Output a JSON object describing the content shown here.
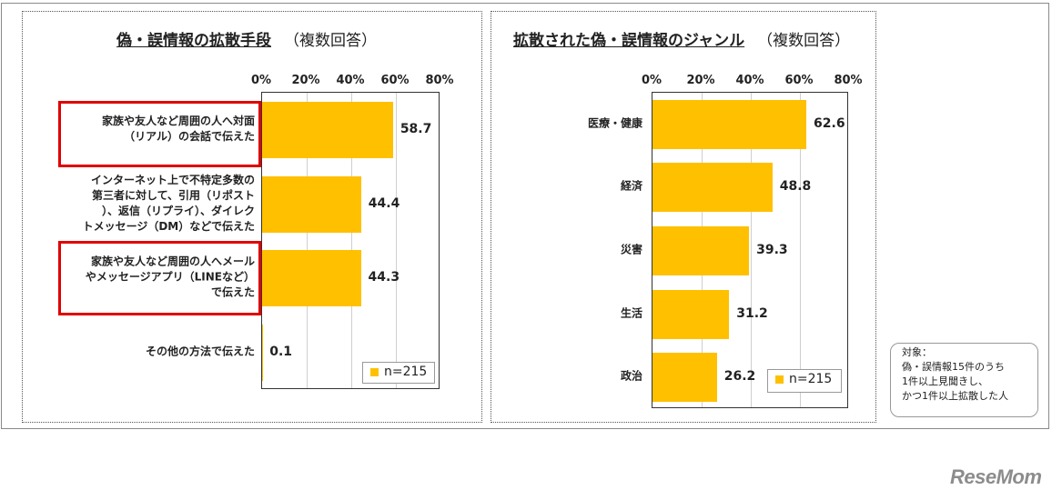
{
  "charts": [
    {
      "title_main": "偽・誤情報の拡散手段",
      "title_sub": "（複数回答）",
      "legend": "n=215",
      "tick_labels": [
        "0%",
        "20%",
        "40%",
        "60%",
        "80%"
      ]
    },
    {
      "title_main": "拡散された偽・誤情報のジャンル",
      "title_sub": "（複数回答）",
      "legend": "n=215",
      "tick_labels": [
        "0%",
        "20%",
        "40%",
        "60%",
        "80%"
      ]
    }
  ],
  "highlight_color": "#e00000",
  "bar_color": "#ffc000",
  "note": {
    "lines": [
      "対象：",
      "偽・誤情報15件のうち",
      "1件以上見聞きし、",
      "かつ1件以上拡散した人"
    ]
  },
  "logo": "ReseMom",
  "chart_data": [
    {
      "type": "bar",
      "orientation": "horizontal",
      "title": "偽・誤情報の拡散手段（複数回答）",
      "xlim": [
        0,
        80
      ],
      "grid": true,
      "legend_position": "bottom-right",
      "categories": [
        [
          "家族や友人など周囲の人へ対面",
          "（リアル）の会話で伝えた"
        ],
        [
          "インターネット上で不特定多数の",
          "第三者に対して、引用（リポスト",
          "）、返信（リプライ）、ダイレク",
          "トメッセージ（DM）などで伝えた"
        ],
        [
          "家族や友人など周囲の人へメール",
          "やメッセージアプリ（LINEなど）",
          "で伝えた"
        ],
        [
          "その他の方法で伝えた"
        ]
      ],
      "values": [
        58.7,
        44.4,
        44.3,
        0.1
      ],
      "value_labels": [
        "58.7",
        "44.4",
        "44.3",
        "0.1"
      ],
      "highlighted": [
        true,
        false,
        true,
        false
      ]
    },
    {
      "type": "bar",
      "orientation": "horizontal",
      "title": "拡散された偽・誤情報のジャンル（複数回答）",
      "xlim": [
        0,
        80
      ],
      "grid": true,
      "legend_position": "bottom-right",
      "categories": [
        [
          "医療・健康"
        ],
        [
          "経済"
        ],
        [
          "災害"
        ],
        [
          "生活"
        ],
        [
          "政治"
        ]
      ],
      "values": [
        62.6,
        48.8,
        39.3,
        31.2,
        26.2
      ],
      "value_labels": [
        "62.6",
        "48.8",
        "39.3",
        "31.2",
        "26.2"
      ],
      "highlighted": [
        false,
        false,
        false,
        false,
        false
      ]
    }
  ]
}
